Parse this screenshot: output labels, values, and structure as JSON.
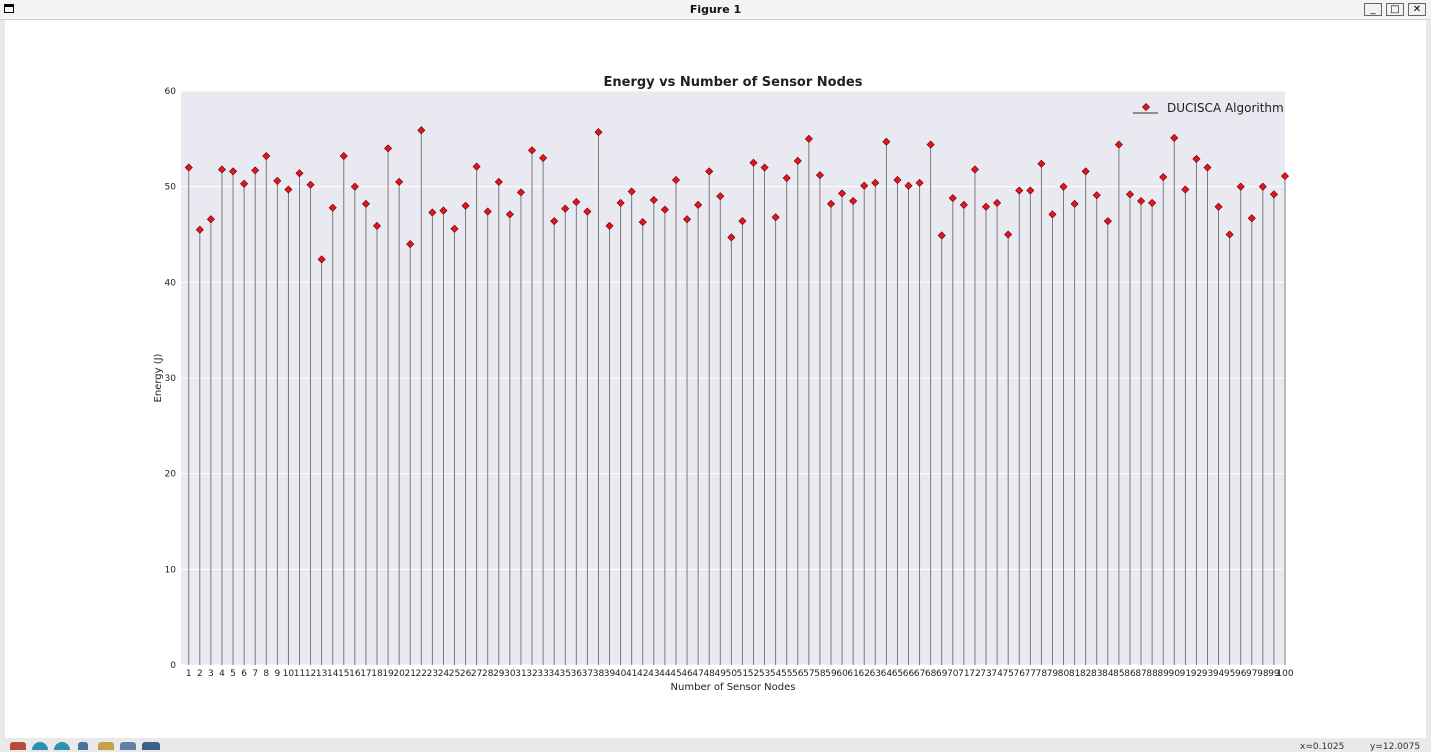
{
  "window": {
    "title": "Figure 1"
  },
  "controls": {
    "minimize": "_",
    "maximize": "□",
    "close": "✕"
  },
  "toolbar": {
    "icons": [
      "home-icon",
      "back-icon",
      "forward-icon",
      "pan-icon",
      "zoom-icon",
      "configure-icon",
      "save-icon"
    ]
  },
  "status": {
    "left": "x=0.1025",
    "right": "y=12.0075"
  },
  "chart_data": {
    "type": "stem",
    "title": "Energy vs Number of Sensor Nodes",
    "xlabel": "Number of Sensor Nodes",
    "ylabel": "Energy (J)",
    "ylim": [
      0,
      60
    ],
    "yticks": [
      0,
      10,
      20,
      30,
      40,
      50,
      60
    ],
    "xlim": [
      0.3,
      100
    ],
    "legend": {
      "placement": "top-right",
      "label": "DUCISCA Algorithm"
    },
    "marker_color": "#e8141c",
    "stem_color": "#6e6e6e",
    "background": "#e9e9f1",
    "x": [
      1,
      2,
      3,
      4,
      5,
      6,
      7,
      8,
      9,
      10,
      11,
      12,
      13,
      14,
      15,
      16,
      17,
      18,
      19,
      20,
      21,
      22,
      23,
      24,
      25,
      26,
      27,
      28,
      29,
      30,
      31,
      32,
      33,
      34,
      35,
      36,
      37,
      38,
      39,
      40,
      41,
      42,
      43,
      44,
      45,
      46,
      47,
      48,
      49,
      50,
      51,
      52,
      53,
      54,
      55,
      56,
      57,
      58,
      59,
      60,
      61,
      62,
      63,
      64,
      65,
      66,
      67,
      68,
      69,
      70,
      71,
      72,
      73,
      74,
      75,
      76,
      77,
      78,
      79,
      80,
      81,
      82,
      83,
      84,
      85,
      86,
      87,
      88,
      89,
      90,
      91,
      92,
      93,
      94,
      95,
      96,
      97,
      98,
      99,
      100
    ],
    "values": [
      52.0,
      45.5,
      46.6,
      51.8,
      51.6,
      50.3,
      51.7,
      53.2,
      50.6,
      49.7,
      51.4,
      50.2,
      42.4,
      47.8,
      53.2,
      50.0,
      48.2,
      45.9,
      54.0,
      50.5,
      44.0,
      55.9,
      47.3,
      47.5,
      45.6,
      48.0,
      52.1,
      47.4,
      50.5,
      47.1,
      49.4,
      53.8,
      53.0,
      46.4,
      47.7,
      48.4,
      47.4,
      55.7,
      45.9,
      48.3,
      49.5,
      46.3,
      48.6,
      47.6,
      50.7,
      46.6,
      48.1,
      51.6,
      49.0,
      44.7,
      46.4,
      52.5,
      52.0,
      46.8,
      50.9,
      52.7,
      55.0,
      51.2,
      48.2,
      49.3,
      48.5,
      50.1,
      50.4,
      54.7,
      50.7,
      50.1,
      50.4,
      54.4,
      44.9,
      48.8,
      48.1,
      51.8,
      47.9,
      48.3,
      45.0,
      49.6,
      49.6,
      52.4,
      47.1,
      50.0,
      48.2,
      51.6,
      49.1,
      46.4,
      54.4,
      49.2,
      48.5,
      48.3,
      51.0,
      55.1,
      49.7,
      52.9,
      52.0,
      47.9,
      45.0,
      50.0,
      46.7,
      50.0,
      49.2,
      51.1
    ]
  }
}
